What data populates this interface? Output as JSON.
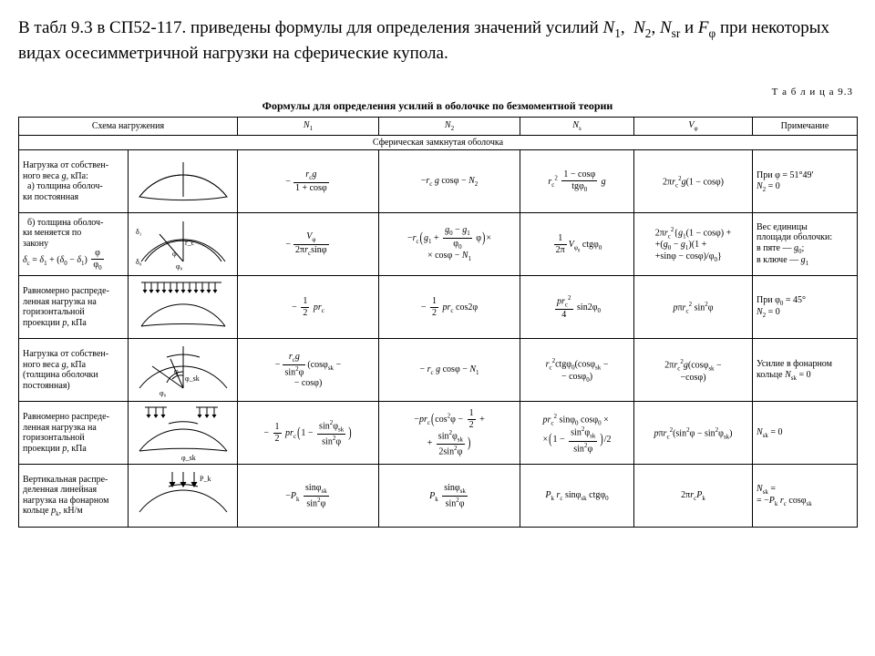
{
  "intro_html": "В табл 9.3 в СП52-117. приведены формулы для определения значений усилий <i>N</i><sub>1</sub>, &nbsp;<i>N</i><sub>2</sub>, <i>N</i><sub>sr</sub> и <i>F</i><sub>φ</sub> при некоторых видах осесимметричной нагрузки на сферические купола.",
  "table_label": "Т а б л и ц а  9.3",
  "table_title": "Формулы для определения усилий в оболочке по безмоментной теории",
  "headers": {
    "c1": "Схема нагружения",
    "c3": "N₁",
    "c4": "N₂",
    "c5": "Nₛ",
    "c6": "Vφ",
    "c7": "Примечание"
  },
  "section": "Сферическая замкнутая оболочка",
  "rows": [
    {
      "desc": "Нагрузка от собствен-<br>ного веса <i>g</i>, кПа:<br>&nbsp;&nbsp;а) толщина оболоч-<br>ки постоянная",
      "n1": "<span class='neg'>−</span><span class='fr'><span class='nu'><i>r</i><sub>c</sub><i>g</i></span><span class='de'>1 + cosφ</span></span>",
      "n2": "−<i>r</i><sub>c</sub> <i>g</i> cosφ − <i>N</i><sub>2</sub>",
      "ns": "<i>r</i><sub>c</sub><sup>2</sup> <span class='fr'><span class='nu'>1 − cosφ</span><span class='de'>tgφ<sub>0</sub></span></span> <i>g</i>",
      "vphi": "2π<i>r</i><sub>c</sub><sup>2</sup><i>g</i>(1 − cosφ)",
      "note": "При φ = 51°49′<br><i>N</i><sub>2</sub> = 0",
      "scheme": "dome1"
    },
    {
      "desc": "&nbsp;&nbsp;б) толщина оболоч-<br>ки меняется по<br>закону<br><i>δ</i><sub>c</sub> = <i>δ</i><sub>1</sub> + (<i>δ</i><sub>0</sub> − <i>δ</i><sub>1</sub>) <span class='fr'><span class='nu'>φ</span><span class='de'>φ<sub>0</sub></span></span>",
      "n1": "<span class='neg'>−</span><span class='fr'><span class='nu'><i>V</i><sub>φ</sub></span><span class='de'>2π<i>r</i><sub>c</sub>sinφ</span></span>",
      "n2": "−<i>r</i><sub>c</sub><span class='lp'>(</span><i>g</i><sub>1</sub> + <span class='fr'><span class='nu'><i>g</i><sub>0</sub> − <i>g</i><sub>1</sub></span><span class='de'>φ<sub>0</sub></span></span> φ<span class='rp'>)</span>×<br>× cosφ − <i>N</i><sub>1</sub>",
      "ns": "<span class='fr'><span class='nu'>1</span><span class='de'>2π</span></span><i>V</i><sub>φ<sub>0</sub></sub> ctgφ<sub>0</sub>",
      "vphi": "<span class='stack'>2π<i>r</i><sub>c</sub><sup>2</sup>{<i>g</i><sub>1</sub>(1 − cosφ) +<br>+(<i>g</i><sub>0</sub> − <i>g</i><sub>1</sub>)(1 +<br>+sinφ − cosφ)/φ<sub>0</sub>}</span>",
      "note": "Вес единицы<br>площади оболочки:<br>в пяте — <i>g</i><sub>0</sub>;<br>в ключе — <i>g</i><sub>1</sub>",
      "scheme": "dome2"
    },
    {
      "desc": "Равномерно распреде-<br>ленная нагрузка на<br>горизонтальной<br>проекции <i>p</i>, кПа",
      "n1": "− <span class='fr'><span class='nu'>1</span><span class='de'>2</span></span> <i>pr</i><sub>c</sub>",
      "n2": "− <span class='fr'><span class='nu'>1</span><span class='de'>2</span></span> <i>pr</i><sub>c</sub> cos2φ",
      "ns": "<span class='fr'><span class='nu'><i>pr</i><sub>c</sub><sup>2</sup></span><span class='de'>4</span></span> sin2φ<sub>0</sub>",
      "vphi": "<i>p</i>π<i>r</i><sub>c</sub><sup>2</sup> sin<sup>2</sup>φ",
      "note": "При φ<sub>0</sub> = 45°<br><i>N</i><sub>2</sub> = 0",
      "scheme": "dome3"
    },
    {
      "desc": "Нагрузка от собствен-<br>ного веса <i>g</i>, кПа<br>(толщина оболочки<br>постоянная)",
      "n1": "<span class='neg'>−</span><span class='fr'><span class='nu'><i>r</i><sub>c</sub><i>g</i></span><span class='de'>sin<sup>2</sup>φ</span></span>(cosφ<sub>sk</sub> −<br>− cosφ)",
      "n2": "− <i>r</i><sub>c</sub> <i>g</i> cosφ − <i>N</i><sub>1</sub>",
      "ns": "<i>r</i><sub>c</sub><sup>2</sup>ctgφ<sub>0</sub>(cosφ<sub>sk</sub> −<br>− cosφ<sub>0</sub>)",
      "vphi": "2π<i>r</i><sub>c</sub><sup>2</sup><i>g</i>(cosφ<sub>sk</sub> −<br>−cosφ)",
      "note": "Усилие в фонарном<br>кольце <i>N</i><sub>sk</sub> = 0",
      "scheme": "dome4"
    },
    {
      "desc": "Равномерно распреде-<br>ленная нагрузка на<br>горизонтальной<br>проекции <i>p</i>, кПа",
      "n1": "− <span class='fr'><span class='nu'>1</span><span class='de'>2</span></span> <i>pr</i><sub>c</sub><span class='lp'>(</span>1 − <span class='fr'><span class='nu'>sin<sup>2</sup>φ<sub>sk</sub></span><span class='de'>sin<sup>2</sup>φ</span></span><span class='rp'>)</span>",
      "n2": "−<i>pr</i><sub>c</sub><span class='lp'>(</span>cos<sup>2</sup>φ − <span class='fr'><span class='nu'>1</span><span class='de'>2</span></span> +<br>+ <span class='fr'><span class='nu'>sin<sup>2</sup>φ<sub>sk</sub></span><span class='de'>2sin<sup>2</sup>φ</span></span><span class='rp'>)</span>",
      "ns": "<span class='stack'><i>pr</i><sub>c</sub><sup>2</sup> sinφ<sub>0</sub> cosφ<sub>0</sub> ×<br>×<span class='lp'>(</span>1 − <span class='fr'><span class='nu'>sin<sup>2</sup>φ<sub>sk</sub></span><span class='de'>sin<sup>2</sup>φ</span></span><span class='rp'>)</span>/2</span>",
      "vphi": "<i>p</i>π<i>r</i><sub>c</sub><sup>2</sup>(sin<sup>2</sup>φ − sin<sup>2</sup>φ<sub>sk</sub>)",
      "note": "<i>N</i><sub>sk</sub> = 0",
      "scheme": "dome5"
    },
    {
      "desc": "Вертикальная распре-<br>деленная линейная<br>нагрузка на фонарном<br>кольце <i>p</i><sub>k</sub>, кН/м",
      "n1": "−<i>P</i><sub>k</sub> <span class='fr'><span class='nu'>sinφ<sub>sk</sub></span><span class='de'>sin<sup>2</sup>φ</span></span>",
      "n2": "<i>P</i><sub>k</sub> <span class='fr'><span class='nu'>sinφ<sub>sk</sub></span><span class='de'>sin<sup>2</sup>φ</span></span>",
      "ns": "<i>P</i><sub>k</sub> <i>r</i><sub>c</sub> sinφ<sub>sk</sub> ctgφ<sub>0</sub>",
      "vphi": "2π<i>r</i><sub>c</sub><i>P</i><sub>k</sub>",
      "note": "<i>N</i><sub>sk</sub> =<br>= −<i>P</i><sub>k</sub> <i>r</i><sub>c</sub> cosφ<sub>sk</sub>",
      "scheme": "dome6"
    }
  ],
  "colors": {
    "stroke": "#000000",
    "bg": "#ffffff"
  }
}
